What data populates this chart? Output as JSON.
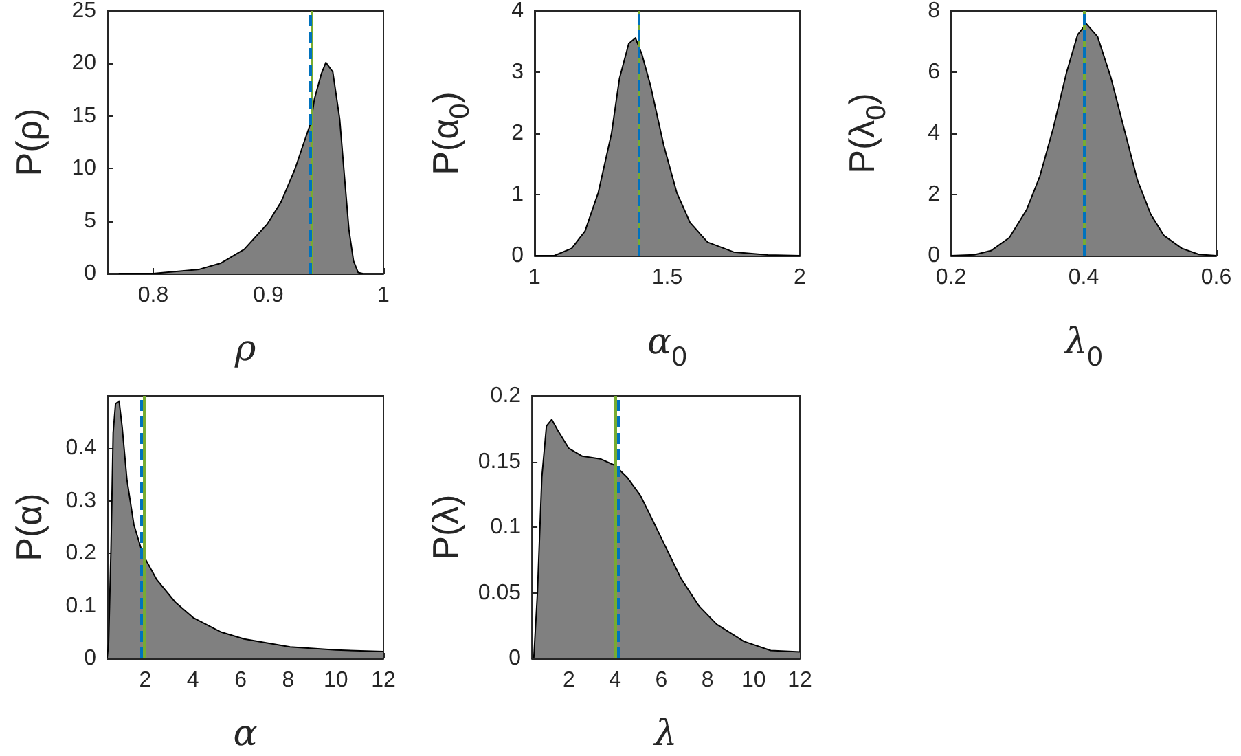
{
  "chart_data": [
    {
      "type": "area",
      "xlabel": "ρ",
      "ylabel": "P(ρ)",
      "xlim": [
        0.76,
        1
      ],
      "xticks": [
        0.8,
        0.9,
        1
      ],
      "ylim": [
        0,
        25
      ],
      "yticks": [
        0,
        5,
        10,
        15,
        20,
        25
      ],
      "x": [
        0.77,
        0.8,
        0.84,
        0.859,
        0.879,
        0.899,
        0.911,
        0.923,
        0.931,
        0.937,
        0.94,
        0.946,
        0.95,
        0.956,
        0.962,
        0.966,
        0.97,
        0.974,
        0.978,
        0.982
      ],
      "series": [
        {
          "color": "#808080",
          "values": [
            0,
            0,
            0.4,
            1.0,
            2.3,
            4.7,
            6.8,
            9.9,
            12.5,
            14.4,
            16.6,
            19,
            20.1,
            19.2,
            14.7,
            9.4,
            4.2,
            1.2,
            0.1,
            0
          ]
        }
      ],
      "ref_lines": [
        {
          "axis": "x",
          "value": 0.938,
          "color": "#77ac30",
          "line_style": "solid"
        },
        {
          "axis": "x",
          "value": 0.936,
          "color": "#0072bd",
          "line_style": "dashed"
        }
      ]
    },
    {
      "type": "area",
      "xlabel": "α$_{0}$",
      "ylabel": "P(α$_{0}$)",
      "xlim": [
        1,
        2
      ],
      "xticks": [
        1,
        1.5,
        2
      ],
      "ylim": [
        0,
        4
      ],
      "yticks": [
        0,
        1,
        2,
        3,
        4
      ],
      "x": [
        1,
        1.074,
        1.14,
        1.19,
        1.24,
        1.29,
        1.32,
        1.355,
        1.38,
        1.404,
        1.437,
        1.487,
        1.536,
        1.586,
        1.652,
        1.75,
        1.88,
        2
      ],
      "series": [
        {
          "color": "#808080",
          "values": [
            0,
            0,
            0.12,
            0.4,
            1.03,
            2.0,
            2.9,
            3.47,
            3.56,
            3.3,
            2.78,
            1.8,
            1.03,
            0.54,
            0.22,
            0.06,
            0.01,
            0
          ]
        }
      ],
      "ref_lines": [
        {
          "axis": "x",
          "value": 1.393,
          "color": "#77ac30",
          "line_style": "solid"
        },
        {
          "axis": "x",
          "value": 1.393,
          "color": "#0072bd",
          "line_style": "dashed"
        }
      ]
    },
    {
      "type": "area",
      "xlabel": "λ$_{0}$",
      "ylabel": "P(λ$_{0}$)",
      "xlim": [
        0.2,
        0.6
      ],
      "xticks": [
        0.2,
        0.4,
        0.6
      ],
      "ylim": [
        0,
        8
      ],
      "yticks": [
        0,
        2,
        4,
        6,
        8
      ],
      "x": [
        0.2,
        0.235,
        0.261,
        0.288,
        0.314,
        0.334,
        0.354,
        0.374,
        0.391,
        0.404,
        0.421,
        0.441,
        0.461,
        0.481,
        0.501,
        0.521,
        0.548,
        0.574,
        0.6
      ],
      "series": [
        {
          "color": "#808080",
          "values": [
            0,
            0.03,
            0.17,
            0.59,
            1.5,
            2.6,
            4.15,
            5.97,
            7.23,
            7.58,
            7.16,
            5.83,
            4.15,
            2.48,
            1.36,
            0.66,
            0.24,
            0.04,
            0
          ]
        }
      ],
      "ref_lines": [
        {
          "axis": "x",
          "value": 0.401,
          "color": "#77ac30",
          "line_style": "solid"
        },
        {
          "axis": "x",
          "value": 0.401,
          "color": "#0072bd",
          "line_style": "dashed"
        }
      ]
    },
    {
      "type": "area",
      "xlabel": "α",
      "ylabel": "P(α)",
      "xlim": [
        0.4,
        12
      ],
      "xticks": [
        2,
        4,
        6,
        8,
        10,
        12
      ],
      "ylim": [
        0,
        0.5
      ],
      "yticks": [
        0,
        0.1,
        0.2,
        0.3,
        0.4
      ],
      "x": [
        0.4,
        0.46,
        0.56,
        0.65,
        0.75,
        0.9,
        1.03,
        1.23,
        1.52,
        1.9,
        2.48,
        3.26,
        4.03,
        5.19,
        6.15,
        8.08,
        10,
        12
      ],
      "series": [
        {
          "color": "#808080",
          "values": [
            0,
            0.03,
            0.21,
            0.43,
            0.485,
            0.49,
            0.44,
            0.34,
            0.255,
            0.198,
            0.15,
            0.107,
            0.077,
            0.05,
            0.037,
            0.022,
            0.016,
            0.013
          ]
        }
      ],
      "ref_lines": [
        {
          "axis": "x",
          "value": 1.94,
          "color": "#77ac30",
          "line_style": "solid"
        },
        {
          "axis": "x",
          "value": 1.85,
          "color": "#0072bd",
          "line_style": "dashed"
        }
      ]
    },
    {
      "type": "area",
      "xlabel": "λ",
      "ylabel": "P(λ)",
      "xlim": [
        0.4,
        12
      ],
      "xticks": [
        2,
        4,
        6,
        8,
        10,
        12
      ],
      "ylim": [
        0,
        0.2
      ],
      "yticks": [
        0,
        0.05,
        0.1,
        0.15,
        0.2
      ],
      "x": [
        0.48,
        0.64,
        0.83,
        1.03,
        1.26,
        1.51,
        2,
        2.58,
        3.36,
        4,
        4.52,
        5.1,
        5.69,
        6.27,
        6.85,
        7.63,
        8.4,
        9.57,
        10.74,
        12
      ],
      "series": [
        {
          "color": "#808080",
          "values": [
            0,
            0.05,
            0.138,
            0.177,
            0.182,
            0.174,
            0.16,
            0.154,
            0.152,
            0.147,
            0.138,
            0.124,
            0.103,
            0.082,
            0.061,
            0.04,
            0.026,
            0.013,
            0.006,
            0.005
          ]
        }
      ],
      "ref_lines": [
        {
          "axis": "x",
          "value": 4.0,
          "color": "#77ac30",
          "line_style": "solid"
        },
        {
          "axis": "x",
          "value": 4.12,
          "color": "#0072bd",
          "line_style": "dashed"
        }
      ]
    }
  ]
}
